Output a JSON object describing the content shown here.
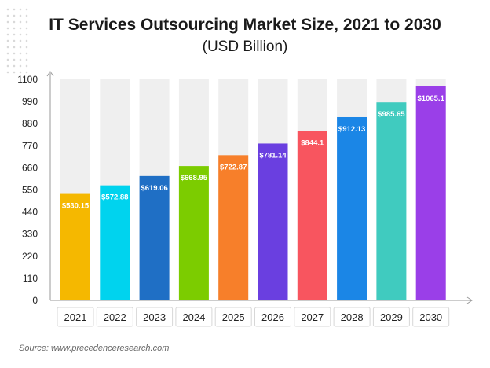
{
  "header": {
    "title": "IT Services Outsourcing Market Size, 2021 to 2030",
    "subtitle": "(USD Billion)"
  },
  "footer": {
    "source": "Source: www.precedenceresearch.com"
  },
  "chart_data": {
    "type": "bar",
    "title": "IT Services Outsourcing Market Size, 2021 to 2030",
    "subtitle": "(USD Billion)",
    "categories": [
      "2021",
      "2022",
      "2023",
      "2024",
      "2025",
      "2026",
      "2027",
      "2028",
      "2029",
      "2030"
    ],
    "values": [
      530.15,
      572.88,
      619.06,
      668.95,
      722.87,
      781.14,
      844.1,
      912.13,
      985.65,
      1065.1
    ],
    "data_labels": [
      "$530.15",
      "$572.88",
      "$619.06",
      "$668.95",
      "$722.87",
      "$781.14",
      "$844.1",
      "$912.13",
      "$985.65",
      "$1065.1"
    ],
    "ylim": [
      0,
      1100
    ],
    "yticks": [
      0,
      110,
      220,
      330,
      440,
      550,
      660,
      770,
      880,
      990,
      1100
    ],
    "bar_colors": [
      "#f5b800",
      "#00d3ee",
      "#1f6fc5",
      "#7ccc00",
      "#f77f2a",
      "#6a3fe0",
      "#f8555f",
      "#1b86e6",
      "#40cbbf",
      "#9a3fe8"
    ],
    "background_bar_color": "#efefef",
    "grid": false,
    "legend": "none"
  }
}
